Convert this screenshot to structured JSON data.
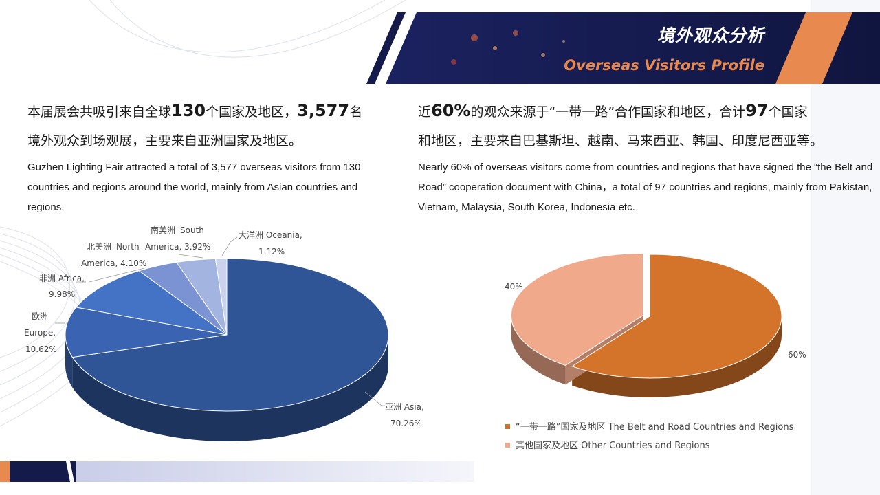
{
  "header": {
    "title_cn": "境外观众分析",
    "title_en": "Overseas Visitors Profile"
  },
  "left_text": {
    "cn_p1": "本届展会共吸引来自全球",
    "cn_n1": "130",
    "cn_p2": "个国家及地区，",
    "cn_n2": "3,577",
    "cn_p3": "名",
    "cn_p4": "境外观众到场观展，主要来自亚洲国家及地区。",
    "en": "Guzhen Lighting Fair attracted a total of 3,577 overseas visitors from 130 countries and regions around the world, mainly from Asian countries and regions."
  },
  "right_text": {
    "cn_p1": "近",
    "cn_n1": "60%",
    "cn_p2": "的观众来源于“一带一路”合作国家和地区，合计",
    "cn_n2": "97",
    "cn_p3": "个国家",
    "cn_p4": "和地区，主要来自巴基斯坦、越南、马来西亚、韩国、印度尼西亚等。",
    "en": "Nearly 60% of overseas visitors come from countries and regions that have signed the “the Belt and Road” cooperation document with China，a total of 97 countries and regions, mainly from Pakistan, Vietnam, Malaysia, South Korea, Indonesia etc."
  },
  "chart_data": [
    {
      "type": "pie",
      "title": "",
      "slices": [
        {
          "label_cn": "亚洲",
          "label_en": "Asia,",
          "pct_text": "70.26%",
          "value": 70.26,
          "color": "#2f5597"
        },
        {
          "label_cn": "欧洲",
          "label_en": "Europe,",
          "pct_text": "10.62%",
          "value": 10.62,
          "color": "#3a64b2"
        },
        {
          "label_cn": "非洲",
          "label_en": "Africa,",
          "pct_text": "9.98%",
          "value": 9.98,
          "color": "#4472c4"
        },
        {
          "label_cn": "北美洲",
          "label_en": "North America, 4.10%",
          "pct_text": "",
          "value": 4.1,
          "color": "#7b93d2"
        },
        {
          "label_cn": "南美洲",
          "label_en": "South America, 3.92%",
          "pct_text": "",
          "value": 3.92,
          "color": "#a4b4e0"
        },
        {
          "label_cn": "大洋洲",
          "label_en": "Oceania,",
          "pct_text": "1.12%",
          "value": 1.12,
          "color": "#c9d3ee"
        }
      ]
    },
    {
      "type": "pie",
      "title": "",
      "slices": [
        {
          "label": "“一带一路”国家及地区 The Belt and Road Countries and Regions",
          "pct_text": "60%",
          "value": 60,
          "color": "#d4732a"
        },
        {
          "label": "其他国家及地区 Other Countries and Regions",
          "pct_text": "40%",
          "value": 40,
          "color": "#f0a98a"
        }
      ],
      "legend": "bottom"
    }
  ],
  "colors": {
    "navy": "#141a4a",
    "accent_orange": "#e8894f"
  }
}
